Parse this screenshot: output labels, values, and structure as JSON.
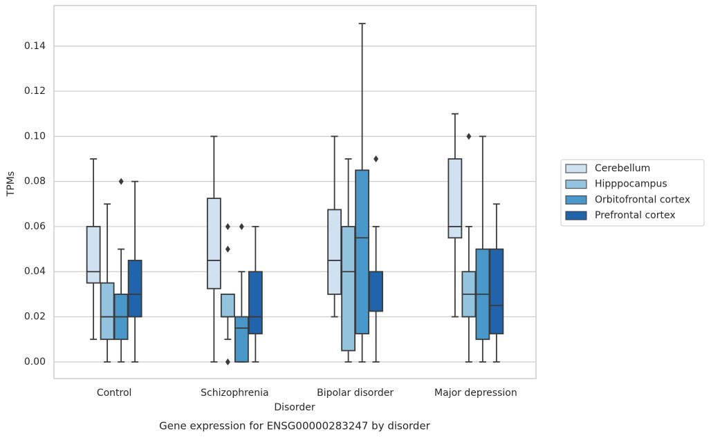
{
  "chart_data": {
    "type": "box",
    "title": "Gene expression for ENSG00000283247 by disorder",
    "x_label": "Disorder",
    "y_label": "TPMs",
    "categories": [
      "Control",
      "Schizophrenia",
      "Bipolar disorder",
      "Major depression"
    ],
    "ylim": [
      -0.0074,
      0.158
    ],
    "yticks": [
      {
        "value": 0,
        "label": "0.00"
      },
      0.02,
      0.04,
      0.06,
      0.08,
      {
        "value": 0.1,
        "label": "0.10"
      },
      0.12,
      0.14
    ],
    "grid": true,
    "legend": "right",
    "series": [
      {
        "name": "Cerebellum",
        "color": "#d0e1f2",
        "values": [
          {
            "whislo": 0.01,
            "q1": 0.035,
            "median": 0.04,
            "q3": 0.06,
            "whishi": 0.09,
            "fliers": []
          },
          {
            "whislo": 0,
            "q1": 0.0325,
            "median": 0.045,
            "q3": 0.0725,
            "whishi": 0.1,
            "fliers": []
          },
          {
            "whislo": 0.02,
            "q1": 0.03,
            "median": 0.045,
            "q3": 0.0675,
            "whishi": 0.1,
            "fliers": []
          },
          {
            "whislo": 0.02,
            "q1": 0.055,
            "median": 0.06,
            "q3": 0.09,
            "whishi": 0.11,
            "fliers": []
          }
        ]
      },
      {
        "name": "Hipppocampus",
        "color": "#94c4df",
        "values": [
          {
            "whislo": 0,
            "q1": 0.01,
            "median": 0.02,
            "q3": 0.035,
            "whishi": 0.07,
            "fliers": []
          },
          {
            "whislo": 0.01,
            "q1": 0.02,
            "median": 0.02,
            "q3": 0.03,
            "whishi": 0.03,
            "fliers": [
              0.06,
              0.05,
              0
            ]
          },
          {
            "whislo": 0,
            "q1": 0.005,
            "median": 0.04,
            "q3": 0.06,
            "whishi": 0.09,
            "fliers": []
          },
          {
            "whislo": 0,
            "q1": 0.02,
            "median": 0.03,
            "q3": 0.04,
            "whishi": 0.06,
            "fliers": [
              0.1
            ]
          }
        ]
      },
      {
        "name": "Orbitofrontal cortex",
        "color": "#4a98c9",
        "values": [
          {
            "whislo": 0,
            "q1": 0.01,
            "median": 0.02,
            "q3": 0.03,
            "whishi": 0.05,
            "fliers": [
              0.08
            ]
          },
          {
            "whislo": 0,
            "q1": 0,
            "median": 0.015,
            "q3": 0.02,
            "whishi": 0.04,
            "fliers": [
              0.06
            ]
          },
          {
            "whislo": 0,
            "q1": 0.0125,
            "median": 0.055,
            "q3": 0.085,
            "whishi": 0.15,
            "fliers": []
          },
          {
            "whislo": 0,
            "q1": 0.01,
            "median": 0.03,
            "q3": 0.05,
            "whishi": 0.1,
            "fliers": []
          }
        ]
      },
      {
        "name": "Prefrontal cortex",
        "color": "#2164ab",
        "values": [
          {
            "whislo": 0,
            "q1": 0.02,
            "median": 0.03,
            "q3": 0.045,
            "whishi": 0.08,
            "fliers": []
          },
          {
            "whislo": 0,
            "q1": 0.0125,
            "median": 0.02,
            "q3": 0.04,
            "whishi": 0.06,
            "fliers": []
          },
          {
            "whislo": 0,
            "q1": 0.0225,
            "median": 0.0225,
            "q3": 0.04,
            "whishi": 0.06,
            "fliers": [
              0.09
            ]
          },
          {
            "whislo": 0,
            "q1": 0.0125,
            "median": 0.025,
            "q3": 0.05,
            "whishi": 0.07,
            "fliers": []
          }
        ]
      }
    ]
  }
}
